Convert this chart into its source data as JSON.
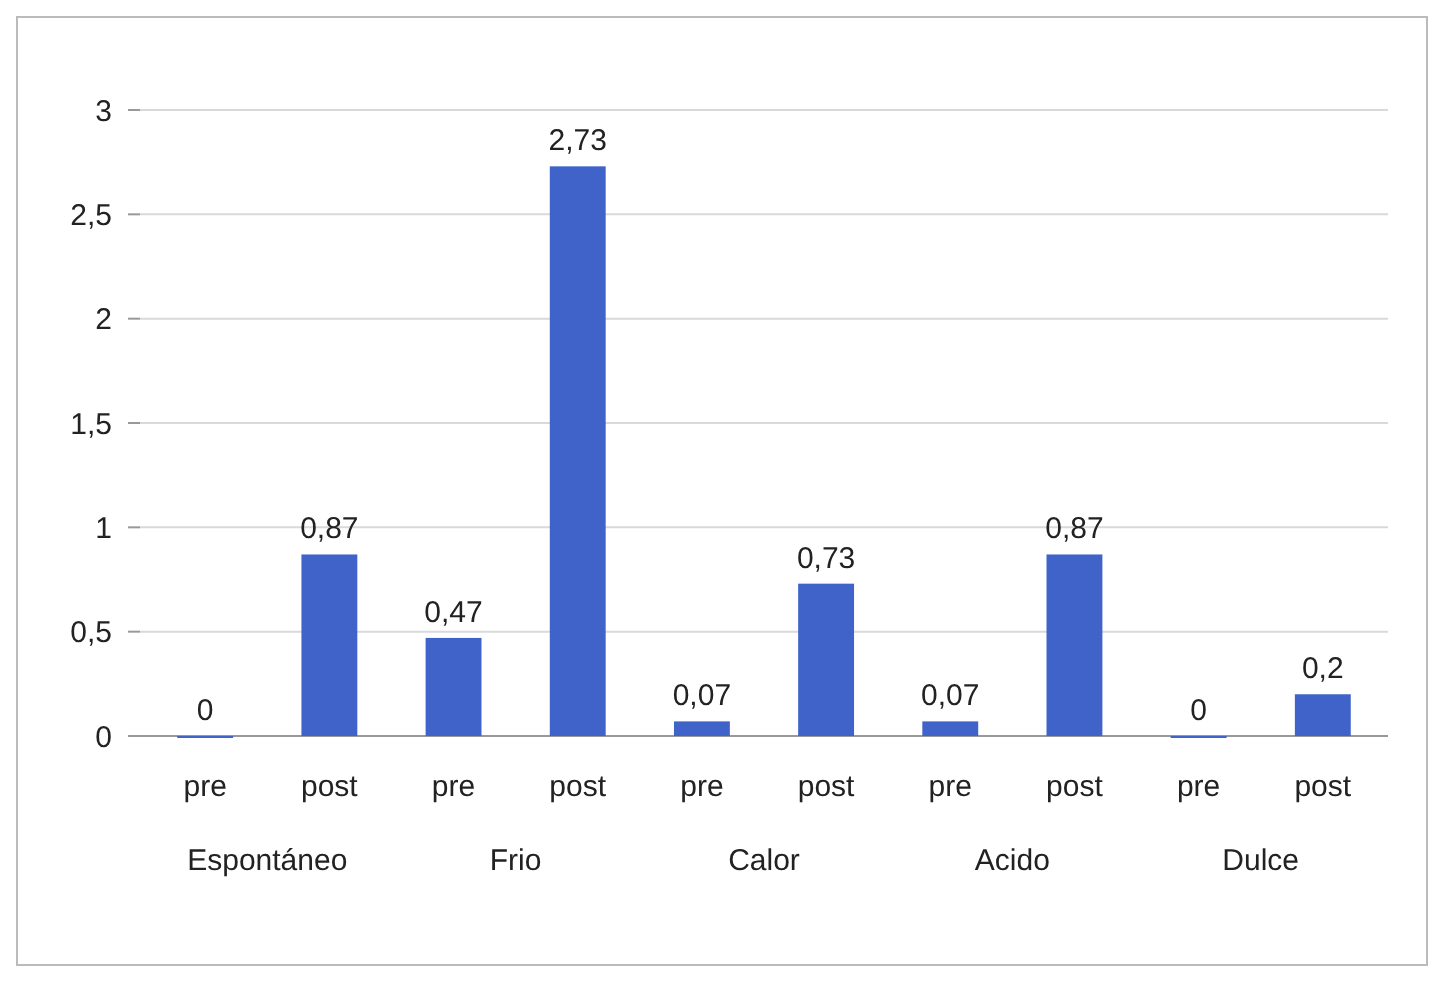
{
  "chart_data": {
    "type": "bar",
    "categories": [
      "pre",
      "post",
      "pre",
      "post",
      "pre",
      "post",
      "pre",
      "post",
      "pre",
      "post"
    ],
    "values": [
      0,
      0.87,
      0.47,
      2.73,
      0.07,
      0.73,
      0.07,
      0.87,
      0,
      0.2
    ],
    "value_labels": [
      "0",
      "0,87",
      "0,47",
      "2,73",
      "0,07",
      "0,73",
      "0,07",
      "0,87",
      "0",
      "0,2"
    ],
    "color": "#3f63c9",
    "ylim": [
      0,
      3
    ],
    "yticks": [
      0,
      {
        "value": 0.5,
        "label": "0,5"
      },
      1,
      {
        "value": 1.5,
        "label": "1,5"
      },
      2,
      {
        "value": 2.5,
        "label": "2,5"
      },
      3
    ],
    "grid": "y",
    "annotations": [
      "Espontáneo",
      "Frio",
      "Calor",
      "Acido",
      "Dulce"
    ]
  }
}
